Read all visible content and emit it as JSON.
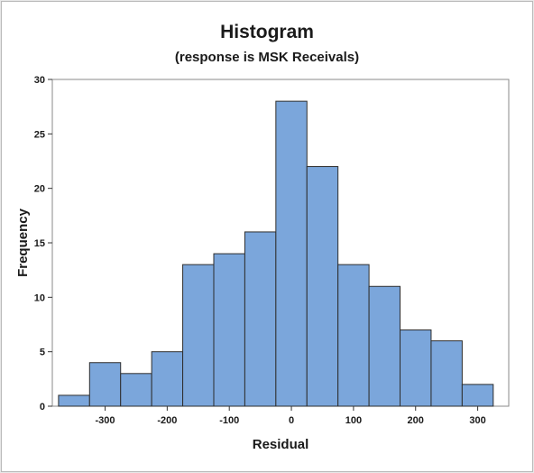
{
  "chart_data": {
    "type": "bar",
    "title": "Histogram",
    "subtitle": "(response is MSK Receivals)",
    "xlabel": "Residual",
    "ylabel": "Frequency",
    "bin_width": 50,
    "bin_centers": [
      -350,
      -300,
      -250,
      -200,
      -150,
      -100,
      -50,
      0,
      50,
      100,
      150,
      200,
      250,
      300
    ],
    "values": [
      1,
      4,
      3,
      5,
      13,
      14,
      16,
      28,
      22,
      13,
      11,
      7,
      6,
      2
    ],
    "xlim": [
      -385,
      350
    ],
    "ylim": [
      0,
      30
    ],
    "x_ticks": [
      -300,
      -200,
      -100,
      0,
      100,
      200,
      300
    ],
    "x_tick_labels": [
      "-300",
      "-200",
      "-100",
      "0",
      "100",
      "200",
      "300"
    ],
    "y_ticks": [
      0,
      5,
      10,
      15,
      20,
      25,
      30
    ],
    "y_tick_labels": [
      "0",
      "5",
      "10",
      "15",
      "20",
      "25",
      "30"
    ],
    "grid": false,
    "bar_color": "#7ba6db",
    "bar_edge_color": "#2e2e2e"
  }
}
